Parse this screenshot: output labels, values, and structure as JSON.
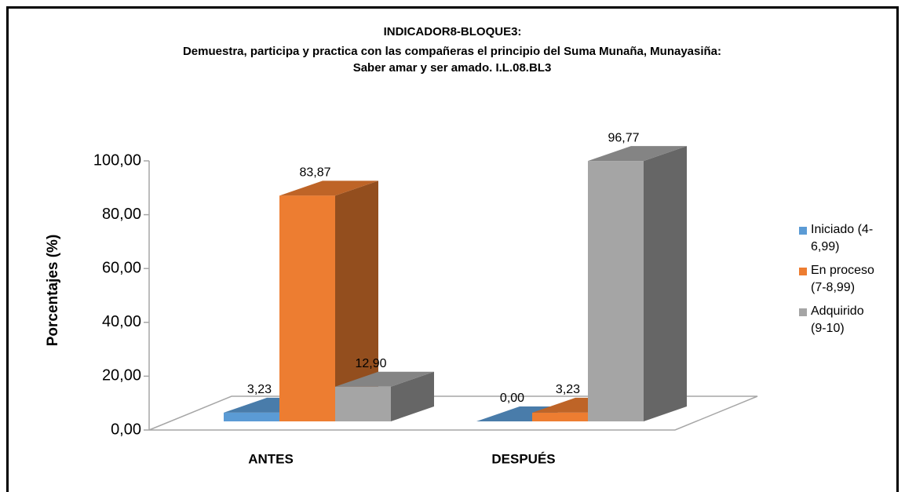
{
  "chart_data": {
    "type": "bar3d",
    "title": "INDICADOR8-BLOQUE3:",
    "subtitle": "Demuestra, participa y practica con las compañeras el principio del Suma Munaña, Munayasiña: Saber amar y ser amado. I.L.08.BL3",
    "y_label": "Porcentajes (%)",
    "categories": [
      "ANTES",
      "DESPUÉS"
    ],
    "series": [
      {
        "name": "Iniciado (4-6,99)",
        "color": "#5b9bd5",
        "values": [
          3.23,
          0.0
        ],
        "value_labels": [
          "3,23",
          "0,00"
        ]
      },
      {
        "name": "En proceso (7-8,99)",
        "color": "#ed7d31",
        "values": [
          83.87,
          3.23
        ],
        "value_labels": [
          "83,87",
          "3,23"
        ]
      },
      {
        "name": "Adquirido (9-10)",
        "color": "#a5a5a5",
        "values": [
          12.9,
          96.77
        ],
        "value_labels": [
          "12,90",
          "96,77"
        ]
      }
    ],
    "ylim": [
      0,
      100
    ],
    "yticks": [
      {
        "value": 0,
        "label": "0,00"
      },
      {
        "value": 20,
        "label": "20,00"
      },
      {
        "value": 40,
        "label": "40,00"
      },
      {
        "value": 60,
        "label": "60,00"
      },
      {
        "value": 80,
        "label": "80,00"
      },
      {
        "value": 100,
        "label": "100,00"
      }
    ],
    "legend": "right"
  }
}
